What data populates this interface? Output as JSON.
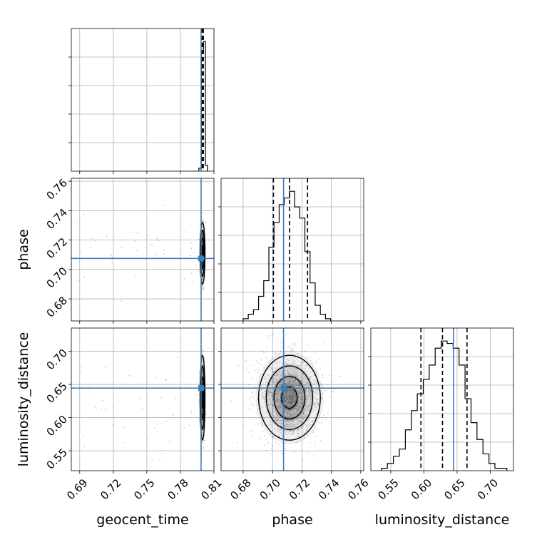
{
  "chart_data": {
    "type": "corner",
    "parameters": [
      "geocent_time",
      "phase",
      "luminosity_distance"
    ],
    "truths": {
      "geocent_time": 0.7985,
      "phase": 0.7075,
      "luminosity_distance": 0.6445
    },
    "truth_color": "#3b7ebd",
    "contour_color": "#000000",
    "grid": true,
    "axis_labels": [
      "geocent_time",
      "phase",
      "luminosity_distance"
    ],
    "ticks": {
      "geocent_time": {
        "range": [
          0.6825,
          0.81
        ],
        "values": [
          0.69,
          0.72,
          0.75,
          0.78,
          0.81
        ],
        "labels": [
          "0.69",
          "0.72",
          "0.75",
          "0.78",
          "0.81"
        ]
      },
      "phase": {
        "range": [
          0.665,
          0.762
        ],
        "values": [
          0.68,
          0.7,
          0.72,
          0.74,
          0.76
        ],
        "labels": [
          "0.68",
          "0.70",
          "0.72",
          "0.74",
          "0.76"
        ]
      },
      "luminosity_distance": {
        "range": [
          0.52,
          0.735
        ],
        "values": [
          0.55,
          0.6,
          0.65,
          0.7
        ],
        "labels": [
          "0.55",
          "0.60",
          "0.65",
          "0.70"
        ]
      }
    },
    "histograms": [
      {
        "parameter": "geocent_time",
        "quantiles": [
          0.7989,
          0.7998,
          0.8005
        ],
        "bin_edges": [
          0.7965,
          0.7988,
          0.8006,
          0.8024,
          0.8042
        ],
        "counts": [
          1,
          40,
          44,
          2
        ],
        "ymax": 44
      },
      {
        "parameter": "phase",
        "quantiles": [
          0.7006,
          0.7116,
          0.7238
        ],
        "bin_edges": [
          0.68,
          0.6835,
          0.687,
          0.6905,
          0.694,
          0.6975,
          0.701,
          0.7045,
          0.708,
          0.7115,
          0.715,
          0.7185,
          0.722,
          0.7255,
          0.729,
          0.7325,
          0.736,
          0.7395
        ],
        "counts": [
          1,
          3,
          5,
          11,
          18,
          33,
          44,
          52,
          55,
          58,
          51,
          46,
          31,
          17,
          7,
          3,
          1
        ],
        "ymax": 58
      },
      {
        "parameter": "luminosity_distance",
        "quantiles": [
          0.5955,
          0.628,
          0.665
        ],
        "bin_edges": [
          0.536,
          0.545,
          0.554,
          0.563,
          0.572,
          0.581,
          0.59,
          0.599,
          0.608,
          0.617,
          0.626,
          0.635,
          0.644,
          0.653,
          0.662,
          0.671,
          0.68,
          0.689,
          0.698,
          0.707,
          0.716,
          0.725
        ],
        "counts": [
          1,
          3,
          6,
          9,
          17,
          25,
          32,
          38,
          44,
          51,
          54,
          53,
          51,
          44,
          30,
          20,
          13,
          7,
          3,
          1,
          1
        ],
        "ymax": 54
      }
    ],
    "joint": [
      {
        "x": "geocent_time",
        "y": "phase",
        "center": [
          0.7998,
          0.711
        ],
        "sigma": [
          0.0011,
          0.0105
        ],
        "scatter_points": 420
      },
      {
        "x": "geocent_time",
        "y": "luminosity_distance",
        "center": [
          0.7998,
          0.63
        ],
        "sigma": [
          0.0011,
          0.032
        ],
        "scatter_points": 420
      },
      {
        "x": "phase",
        "y": "luminosity_distance",
        "center": [
          0.7115,
          0.63
        ],
        "sigma": [
          0.0105,
          0.032
        ],
        "scatter_points": 1300
      }
    ]
  }
}
